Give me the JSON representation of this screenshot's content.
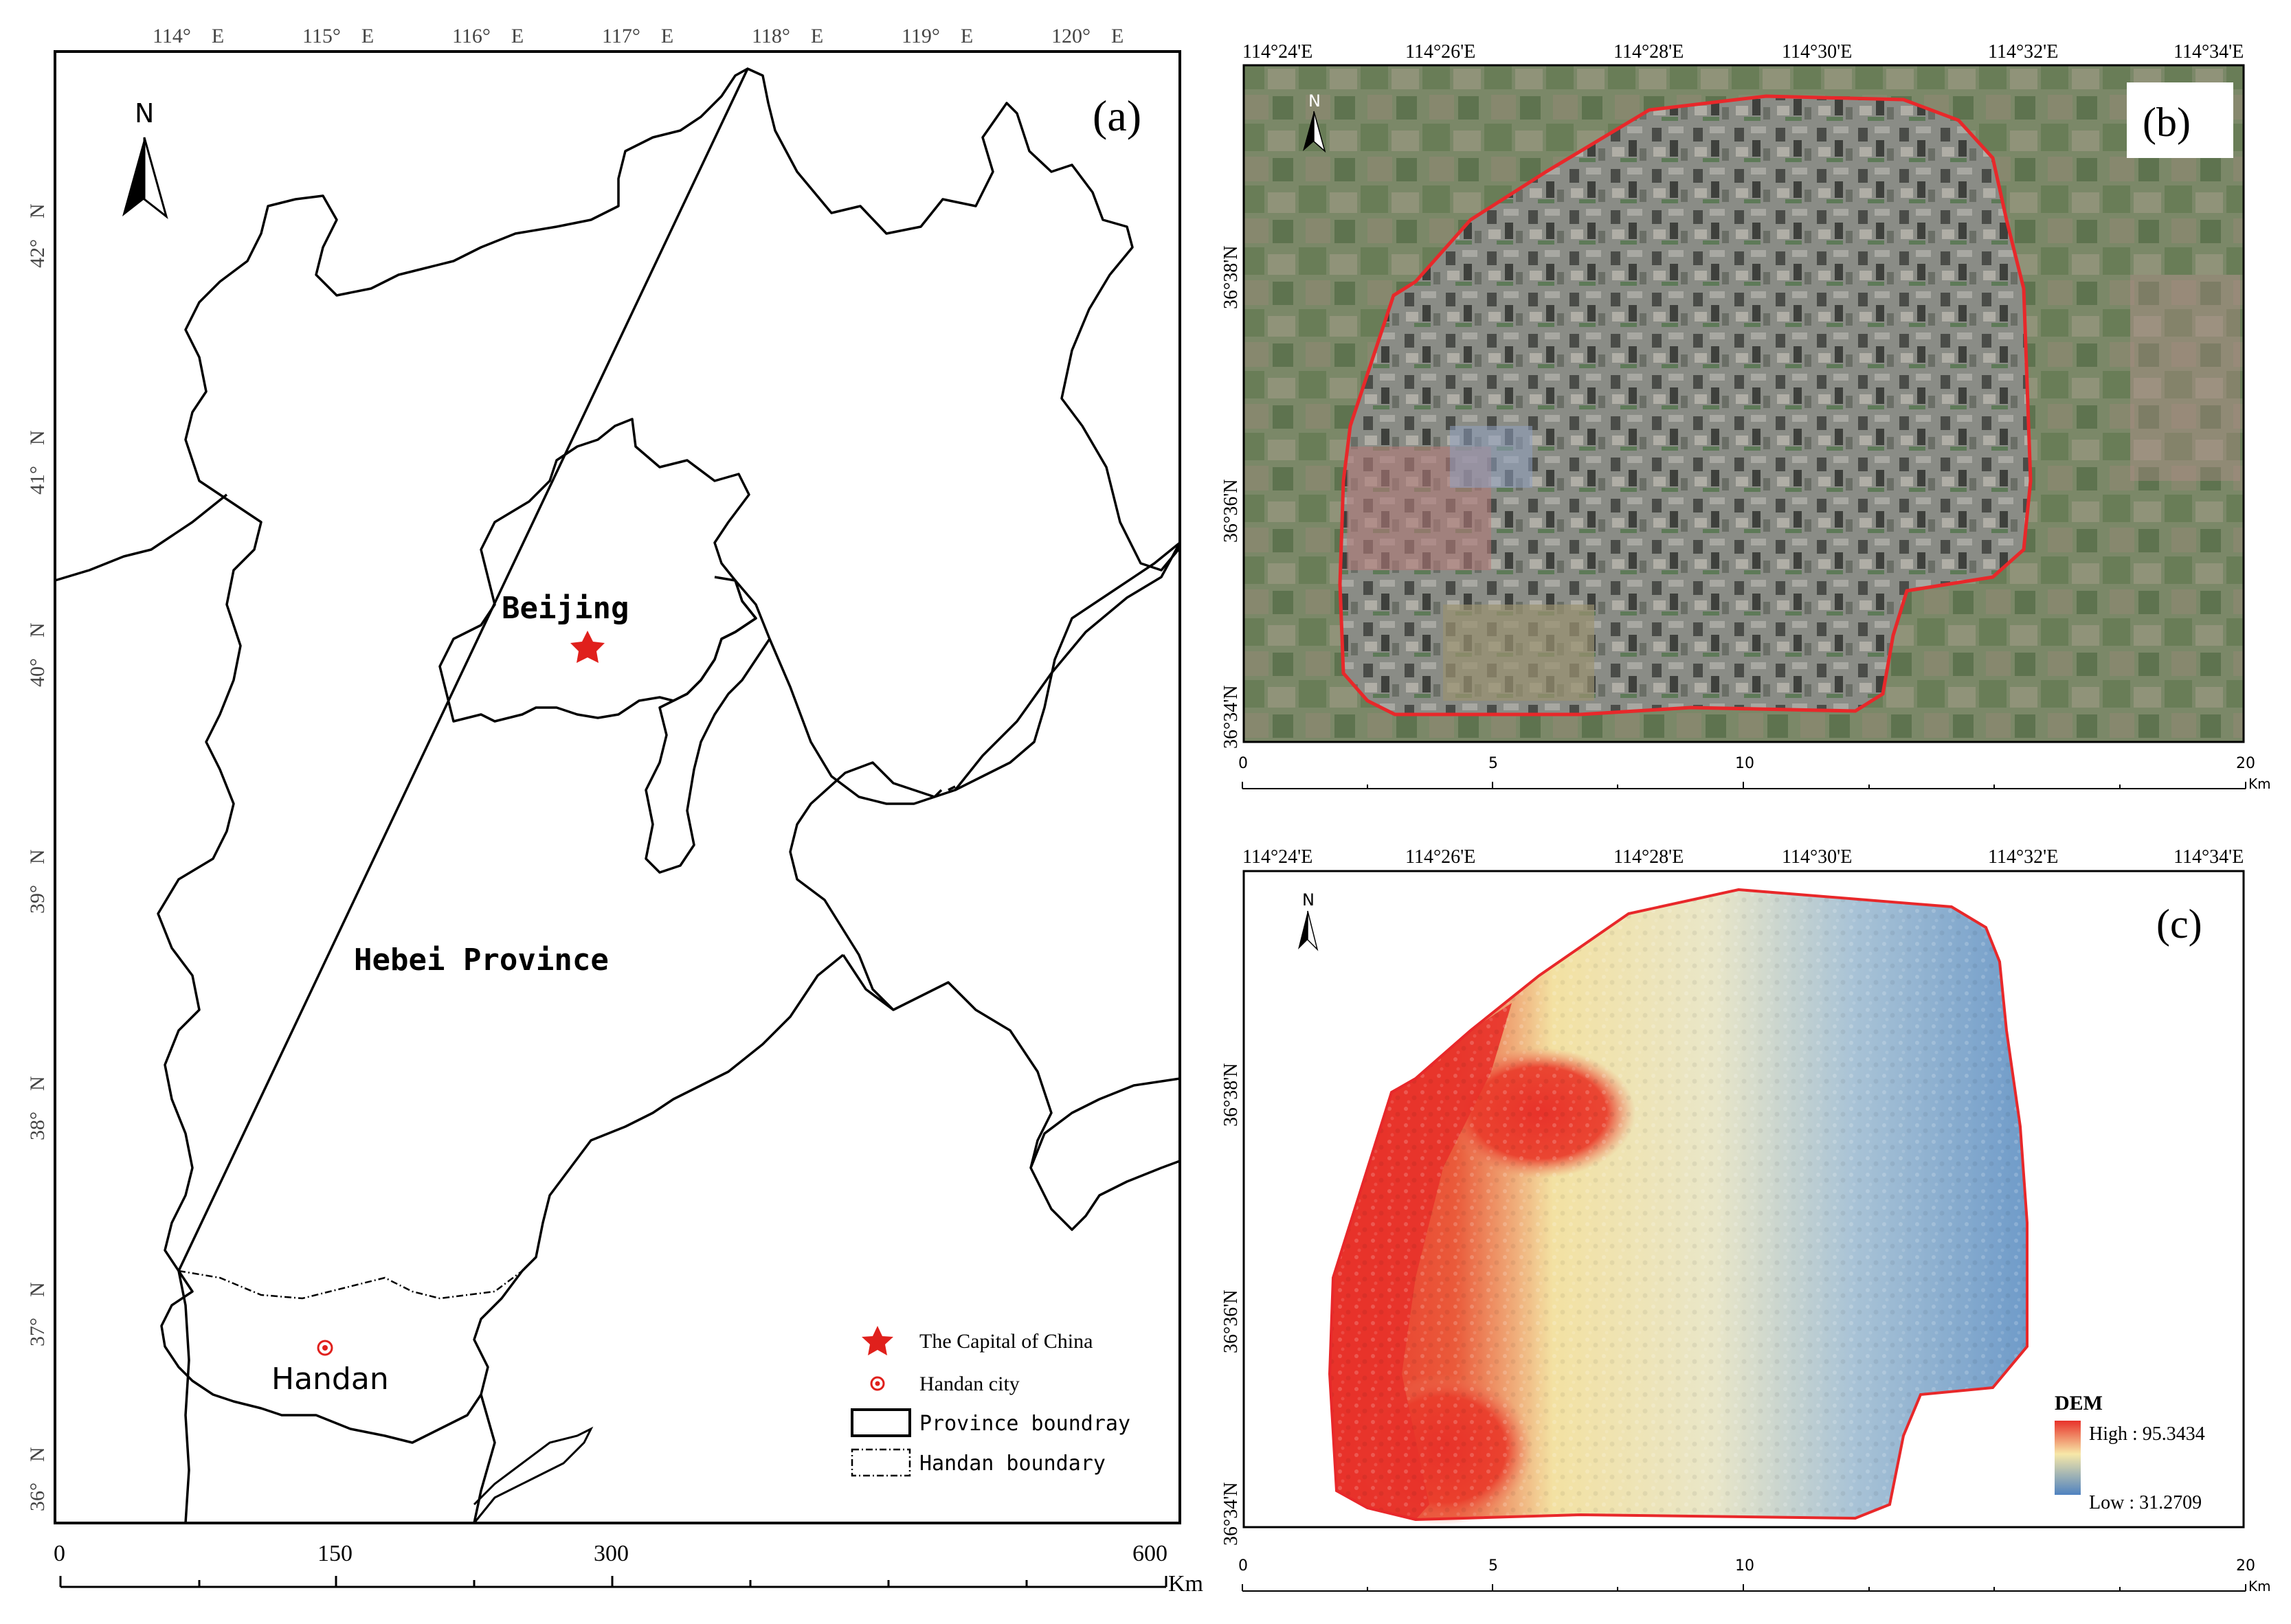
{
  "panel_a": {
    "label": "(a)",
    "north": "N",
    "lon_ticks": [
      "114°　E",
      "115°　E",
      "116°　E",
      "117°　E",
      "118°　E",
      "119°　E",
      "120°　E"
    ],
    "lat_ticks": [
      "42°　N",
      "41°　N",
      "40°　N",
      "39°　N",
      "38°　N",
      "37°　N",
      "36°　N"
    ],
    "beijing_label": "Beijing",
    "hebei_label": "Hebei Province",
    "handan_label": "Handan",
    "scale_labels": [
      "0",
      "150",
      "300",
      "600"
    ],
    "scale_unit": "Km",
    "legend": {
      "capital": "The Capital of China",
      "city": "Handan city",
      "province": "Province boundray",
      "handan": "Handan boundary"
    },
    "colors": {
      "capital": "#e0201c",
      "boundary": "#000000"
    }
  },
  "panel_b": {
    "label": "(b)",
    "north": "N",
    "lon_ticks": [
      "114°24'E",
      "114°26'E",
      "114°28'E",
      "114°30'E",
      "114°32'E",
      "114°34'E"
    ],
    "lat_ticks": [
      "36°38'N",
      "36°36'N",
      "36°34'N"
    ],
    "scale_labels": [
      "0",
      "5",
      "10",
      "20"
    ],
    "scale_unit": "Km",
    "colors": {
      "outline": "#e8282a"
    }
  },
  "panel_c": {
    "label": "(c)",
    "north": "N",
    "lon_ticks": [
      "114°24'E",
      "114°26'E",
      "114°28'E",
      "114°30'E",
      "114°32'E",
      "114°34'E"
    ],
    "lat_ticks": [
      "36°38'N",
      "36°36'N",
      "36°34'N"
    ],
    "scale_labels": [
      "0",
      "5",
      "10",
      "20"
    ],
    "scale_unit": "Km",
    "legend_title": "DEM",
    "legend_high": "High : 95.3434",
    "legend_low": "Low : 31.2709",
    "colors": {
      "high": "#e8322a",
      "mid": "#f5ebb0",
      "low": "#5a8ac0",
      "outline": "#e8282a"
    }
  }
}
